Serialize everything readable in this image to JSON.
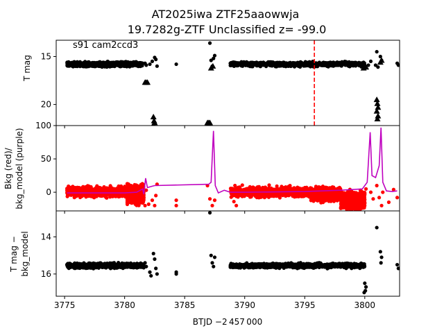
{
  "figure": {
    "title_line1": "AT2025iwa  ZTF25aaowwja",
    "title_line2": "19.7282g-ZTF Unclassified z= -99.0",
    "annotation": "s91 cam2ccd3",
    "xlabel": "BTJD −2 457 000"
  },
  "colors": {
    "data_black": "#000000",
    "bkg_red": "#ff0000",
    "bkg_model_purple": "#bf00bf",
    "marker_line": "#ff0000"
  },
  "chart_data": [
    {
      "type": "scatter",
      "name": "T mag",
      "ylabel": "T mag",
      "y_inverted": true,
      "xlim": [
        3774.3,
        3802.9
      ],
      "ylim": [
        22.2,
        13.3
      ],
      "xticks": [
        3775,
        3780,
        3785,
        3790,
        3795,
        3800
      ],
      "yticks": [
        15,
        20
      ],
      "vertical_marker_x": 3795.8,
      "segments": [
        {
          "x0": 3775.2,
          "x1": 3781.5,
          "y": 15.8,
          "jitter": 0.22
        },
        {
          "x0": 3788.8,
          "x1": 3800.0,
          "y": 15.8,
          "jitter": 0.22
        }
      ],
      "points": [
        [
          3781.7,
          15.7
        ],
        [
          3781.8,
          15.9
        ],
        [
          3782.1,
          15.8
        ],
        [
          3782.3,
          15.5
        ],
        [
          3782.5,
          15.1
        ],
        [
          3782.6,
          15.3
        ],
        [
          3782.7,
          16.0
        ],
        [
          3784.3,
          15.8
        ],
        [
          3787.1,
          13.6
        ],
        [
          3787.2,
          15.4
        ],
        [
          3787.3,
          16.0
        ],
        [
          3787.4,
          15.2
        ],
        [
          3787.5,
          14.9
        ],
        [
          3800.3,
          15.9
        ],
        [
          3800.5,
          15.5
        ],
        [
          3800.9,
          15.9
        ],
        [
          3801.0,
          14.5
        ],
        [
          3801.1,
          16.1
        ],
        [
          3801.3,
          15.0
        ],
        [
          3801.4,
          15.4
        ],
        [
          3802.7,
          15.7
        ],
        [
          3802.8,
          15.9
        ]
      ],
      "upper_limits": [
        [
          3781.7,
          17.7
        ],
        [
          3781.8,
          17.7
        ],
        [
          3781.9,
          17.7
        ],
        [
          3782.4,
          21.3
        ],
        [
          3782.45,
          21.7
        ],
        [
          3782.5,
          21.9
        ],
        [
          3782.4,
          22.1
        ],
        [
          3786.9,
          21.9
        ],
        [
          3787.0,
          21.9
        ],
        [
          3787.1,
          21.9
        ],
        [
          3787.2,
          16.2
        ],
        [
          3787.35,
          16.0
        ],
        [
          3799.9,
          16.2
        ],
        [
          3800.0,
          16.0
        ],
        [
          3800.1,
          16.1
        ],
        [
          3801.0,
          19.5
        ],
        [
          3801.05,
          19.9
        ],
        [
          3801.1,
          20.3
        ],
        [
          3801.0,
          20.7
        ],
        [
          3801.1,
          21.2
        ],
        [
          3801.05,
          21.5
        ],
        [
          3801.3,
          15.6
        ],
        [
          3801.4,
          15.4
        ]
      ]
    },
    {
      "type": "scatter+line",
      "ylabel_line1": "Bkg (red)/",
      "ylabel_line2": "bkg_model (purple)",
      "xlim": [
        3774.3,
        3802.9
      ],
      "ylim": [
        -28,
        100
      ],
      "yticks": [
        0,
        50,
        100
      ],
      "series": [
        {
          "name": "Bkg",
          "segments": [
            {
              "x0": 3775.2,
              "x1": 3780.2,
              "y": 0.5,
              "jitter": 7
            },
            {
              "x0": 3780.2,
              "x1": 3781.6,
              "y": -3,
              "jitter": 12
            },
            {
              "x0": 3788.8,
              "x1": 3795.5,
              "y": 0.5,
              "jitter": 7
            },
            {
              "x0": 3795.5,
              "x1": 3798.0,
              "y": -3,
              "jitter": 9
            },
            {
              "x0": 3798.0,
              "x1": 3800.0,
              "y": -12,
              "jitter": 12
            }
          ],
          "points": [
            [
              3781.7,
              -20
            ],
            [
              3781.8,
              3
            ],
            [
              3782.0,
              -18
            ],
            [
              3782.3,
              -12
            ],
            [
              3782.5,
              -20
            ],
            [
              3782.7,
              12
            ],
            [
              3782.6,
              -5
            ],
            [
              3784.3,
              -12
            ],
            [
              3784.3,
              -20
            ],
            [
              3786.9,
              10
            ],
            [
              3787.1,
              -10
            ],
            [
              3787.3,
              -20
            ],
            [
              3787.5,
              -12
            ],
            [
              3789.1,
              -14
            ],
            [
              3789.3,
              -20
            ],
            [
              3800.1,
              5
            ],
            [
              3800.5,
              0
            ],
            [
              3800.7,
              -10
            ],
            [
              3801.0,
              10
            ],
            [
              3801.2,
              -8
            ],
            [
              3801.4,
              -20
            ],
            [
              3801.5,
              0
            ],
            [
              3802.0,
              -15
            ],
            [
              3802.4,
              4
            ],
            [
              3802.7,
              -8
            ]
          ]
        },
        {
          "name": "bkg_model",
          "points": [
            [
              3775.2,
              -1
            ],
            [
              3778.0,
              -1
            ],
            [
              3780.0,
              -1
            ],
            [
              3781.0,
              0
            ],
            [
              3781.5,
              5
            ],
            [
              3781.6,
              -3
            ],
            [
              3781.75,
              21
            ],
            [
              3781.9,
              7
            ],
            [
              3782.3,
              9
            ],
            [
              3782.5,
              10
            ],
            [
              3787.0,
              12
            ],
            [
              3787.2,
              15
            ],
            [
              3787.4,
              92
            ],
            [
              3787.55,
              10
            ],
            [
              3787.8,
              -1
            ],
            [
              3788.3,
              3
            ],
            [
              3788.8,
              0
            ],
            [
              3790.0,
              0
            ],
            [
              3795.0,
              1
            ],
            [
              3798.0,
              3
            ],
            [
              3799.8,
              5
            ],
            [
              3800.2,
              15
            ],
            [
              3800.45,
              90
            ],
            [
              3800.6,
              25
            ],
            [
              3800.9,
              22
            ],
            [
              3801.2,
              40
            ],
            [
              3801.35,
              97
            ],
            [
              3801.5,
              15
            ],
            [
              3801.8,
              2
            ],
            [
              3802.3,
              1
            ],
            [
              3802.7,
              2
            ]
          ]
        }
      ]
    },
    {
      "type": "scatter",
      "ylabel_line1": "T mag −",
      "ylabel_line2": "bkg_model",
      "y_inverted": true,
      "xlim": [
        3774.3,
        3802.9
      ],
      "ylim": [
        17.2,
        12.6
      ],
      "yticks": [
        14,
        16
      ],
      "segments": [
        {
          "x0": 3775.2,
          "x1": 3781.6,
          "y": 15.55,
          "jitter": 0.12
        },
        {
          "x0": 3788.8,
          "x1": 3800.0,
          "y": 15.55,
          "jitter": 0.12
        }
      ],
      "points": [
        [
          3781.7,
          15.4
        ],
        [
          3781.8,
          15.6
        ],
        [
          3782.1,
          15.9
        ],
        [
          3782.2,
          16.1
        ],
        [
          3782.4,
          14.9
        ],
        [
          3782.5,
          15.2
        ],
        [
          3782.6,
          15.7
        ],
        [
          3782.7,
          16.0
        ],
        [
          3784.3,
          15.9
        ],
        [
          3784.3,
          16.0
        ],
        [
          3787.1,
          12.7
        ],
        [
          3787.2,
          15.0
        ],
        [
          3787.3,
          15.4
        ],
        [
          3787.4,
          15.6
        ],
        [
          3787.5,
          15.1
        ],
        [
          3800.0,
          16.5
        ],
        [
          3800.05,
          16.9
        ],
        [
          3800.1,
          16.7
        ],
        [
          3799.95,
          17.0
        ],
        [
          3801.0,
          13.5
        ],
        [
          3801.3,
          14.8
        ],
        [
          3801.4,
          15.1
        ],
        [
          3801.35,
          15.4
        ],
        [
          3802.7,
          15.5
        ],
        [
          3802.8,
          15.7
        ]
      ]
    }
  ]
}
